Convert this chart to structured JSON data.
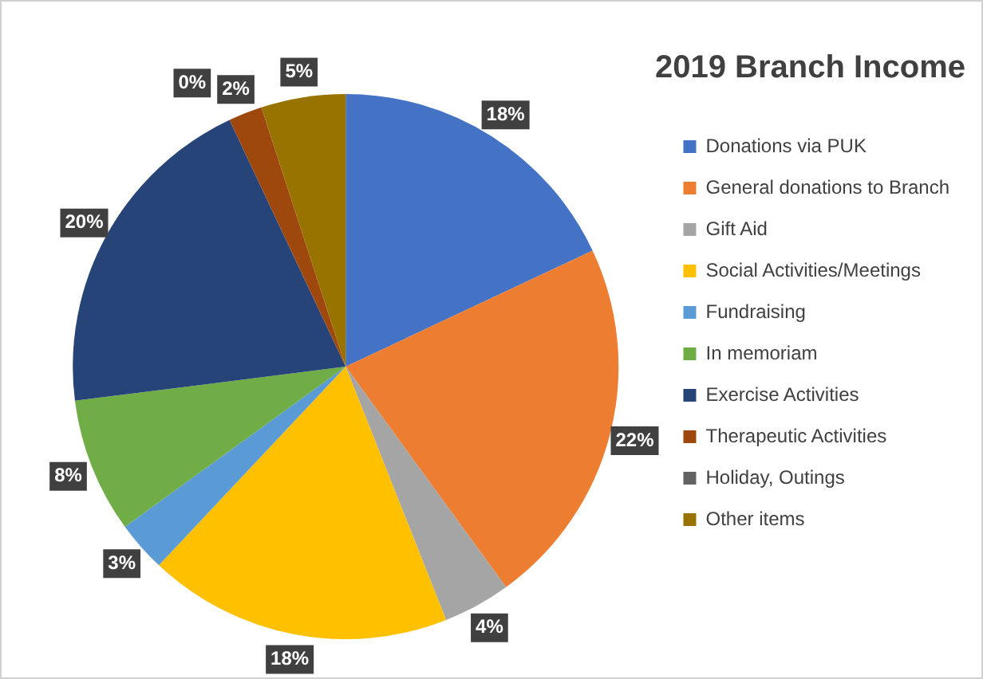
{
  "chart_data": {
    "type": "pie",
    "title": "2019 Branch Income",
    "categories": [
      "Donations via PUK",
      "General donations to Branch",
      "Gift Aid",
      "Social Activities/Meetings",
      "Fundraising",
      "In memoriam",
      "Exercise Activities",
      "Therapeutic Activities",
      "Holiday, Outings",
      "Other items"
    ],
    "values": [
      18,
      22,
      4,
      18,
      3,
      8,
      20,
      2,
      0,
      5
    ],
    "value_labels": [
      "18%",
      "22%",
      "4%",
      "18%",
      "3%",
      "8%",
      "20%",
      "2%",
      "0%",
      "5%"
    ],
    "colors": [
      "#4472c4",
      "#ed7d31",
      "#a5a5a5",
      "#ffc000",
      "#5b9bd5",
      "#70ad47",
      "#264478",
      "#9e480e",
      "#636363",
      "#997300"
    ],
    "legend": "right"
  }
}
